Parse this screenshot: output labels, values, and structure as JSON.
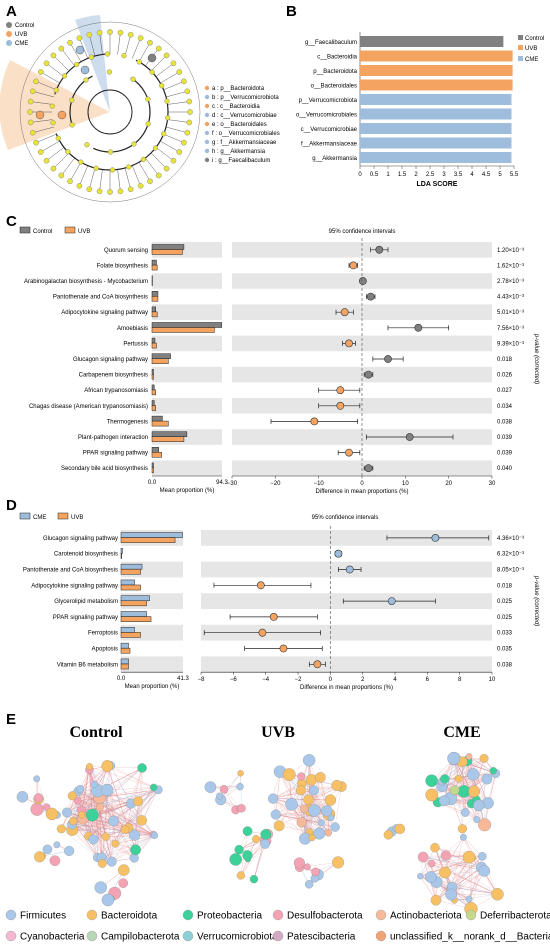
{
  "panels": {
    "a": "A",
    "b": "B",
    "c": "C",
    "d": "D",
    "e": "E"
  },
  "colors": {
    "control": "#808080",
    "uvb": "#F4A460",
    "cme": "#9EBCDB",
    "uvb_shade": "#F9D3B0",
    "yellow_node": "#E8E337",
    "grey_band": "#e6e6e6"
  },
  "chart_data": [
    {
      "id": "A",
      "type": "cladogram",
      "legend_groups": [
        "Control",
        "UVB",
        "CME"
      ],
      "clade_labels": [
        {
          "key": "a",
          "text": "a : p__Bacteroidota",
          "group": "UVB"
        },
        {
          "key": "b",
          "text": "b : p__Verrucomicrobiota",
          "group": "CME"
        },
        {
          "key": "c",
          "text": "c : c__Bacteroidia",
          "group": "UVB"
        },
        {
          "key": "d",
          "text": "d : c__Verrucomicrobiae",
          "group": "CME"
        },
        {
          "key": "e",
          "text": "e : o__Bacteroidales",
          "group": "UVB"
        },
        {
          "key": "f",
          "text": "f : o__Verrucomicrobiales",
          "group": "CME"
        },
        {
          "key": "g",
          "text": "g : f__Akkermansiaceae",
          "group": "CME"
        },
        {
          "key": "h",
          "text": "h : g__Akkermansia",
          "group": "CME"
        },
        {
          "key": "i",
          "text": "i : g__Faecalibaculum",
          "group": "Control"
        }
      ]
    },
    {
      "id": "B",
      "type": "bar",
      "orientation": "horizontal",
      "categories": [
        "g__Faecalibaculum",
        "c__Bacteroidia",
        "p__Bacteroidota",
        "o__Bacteroidales",
        "p__Verrucomicrobiota",
        "o__Verrucomicrobiales",
        "c__Verrucomicrobiae",
        "f__Akkermansiaceae",
        "g__Akkermansia"
      ],
      "groups": [
        "Control",
        "UVB",
        "UVB",
        "UVB",
        "CME",
        "CME",
        "CME",
        "CME",
        "CME"
      ],
      "values": [
        5.12,
        5.45,
        5.45,
        5.45,
        5.41,
        5.41,
        5.41,
        5.41,
        5.41
      ],
      "xlabel": "LDA SCORE",
      "xlim": [
        0,
        5.5
      ],
      "xticks": [
        "0",
        "0.5",
        "1",
        "1.5",
        "2",
        "2.5",
        "3",
        "3.5",
        "4",
        "4.5",
        "5",
        "5.5"
      ],
      "legend": [
        "Control",
        "UVB",
        "CME"
      ],
      "legend_position": "right"
    },
    {
      "id": "C",
      "type": "bar+errorbar",
      "legend": [
        "Control",
        "UVB"
      ],
      "right_title": "95% confidence intervals",
      "pathways": [
        "Quorum sensing",
        "Folate biosynthesis",
        "Arabinogalactan biosynthesis - Mycobacterium",
        "Pantothenate and CoA biosynthesis",
        "Adipocytokine signaling pathway",
        "Amoebiasis",
        "Pertussis",
        "Glucagon signaling pathway",
        "Carbapenem biosynthesis",
        "African trypanosomiasis",
        "Chagas disease (American trypanosomiasis)",
        "Thermogenesis",
        "Plant-pathogen interaction",
        "PPAR signaling pathway",
        "Secondary bile acid biosynthesis"
      ],
      "series": [
        {
          "name": "Control",
          "values": [
            43,
            6,
            0.5,
            8,
            5,
            94,
            4,
            25,
            2,
            3,
            3,
            14,
            47,
            9,
            2
          ]
        },
        {
          "name": "UVB",
          "values": [
            41,
            7,
            0.5,
            8,
            7,
            84,
            6,
            22,
            2,
            5,
            5,
            22,
            43,
            13,
            2
          ]
        }
      ],
      "bar_xlim": [
        0,
        94.3
      ],
      "bar_xticks": [
        "0.0",
        "94.3"
      ],
      "bar_xlabel": "Mean proportion (%)",
      "diff": [
        4,
        -2,
        0.2,
        2,
        -4,
        13,
        -3,
        6,
        1.5,
        -5,
        -5,
        -11,
        11,
        -3,
        1.5
      ],
      "ci_low": [
        2,
        -3,
        0,
        1,
        -6,
        6,
        -4.5,
        2.5,
        0.5,
        -10,
        -10,
        -21,
        1,
        -5.5,
        0.5
      ],
      "ci_high": [
        6,
        -1,
        0.5,
        3,
        -2,
        20,
        -1.5,
        9.5,
        2.5,
        -0.5,
        -0.5,
        -1,
        21,
        -0.5,
        2.5
      ],
      "point_group": [
        "Control",
        "UVB",
        "Control",
        "Control",
        "UVB",
        "Control",
        "UVB",
        "Control",
        "Control",
        "UVB",
        "UVB",
        "UVB",
        "Control",
        "UVB",
        "Control"
      ],
      "diff_xlim": [
        -30,
        30
      ],
      "diff_xticks": [
        "−30",
        "−20",
        "−10",
        "0",
        "10",
        "20",
        "30"
      ],
      "diff_xlabel": "Difference in mean proportions (%)",
      "pvalues": [
        "1.20×10⁻³",
        "1.62×10⁻³",
        "2.78×10⁻³",
        "4.43×10⁻³",
        "5.01×10⁻³",
        "7.56×10⁻³",
        "9.39×10⁻³",
        "0.018",
        "0.026",
        "0.027",
        "0.034",
        "0.038",
        "0.039",
        "0.039",
        "0.040"
      ],
      "pvalue_label": "p-value (corrected)"
    },
    {
      "id": "D",
      "type": "bar+errorbar",
      "legend": [
        "CME",
        "UVB"
      ],
      "right_title": "95% confidence intervals",
      "pathways": [
        "Glucagon signaling pathway",
        "Carotenoid biosynthesis",
        "Pantothenate and CoA biosynthesis",
        "Adipocytokine signaling pathway",
        "Glycerolipid metabolism",
        "PPAR signaling pathway",
        "Ferroptosis",
        "Apoptosis",
        "Vitamin B6 metabolism"
      ],
      "series": [
        {
          "name": "CME",
          "values": [
            41,
            1,
            14,
            9,
            19,
            17,
            9,
            5,
            5
          ]
        },
        {
          "name": "UVB",
          "values": [
            36,
            0.5,
            13,
            13,
            17,
            20,
            13,
            6,
            5
          ]
        }
      ],
      "bar_xlim": [
        0,
        41.3
      ],
      "bar_xticks": [
        "0.0",
        "41.3"
      ],
      "bar_xlabel": "Mean proportion (%)",
      "diff": [
        6.5,
        0.5,
        1.2,
        -4.3,
        3.8,
        -3.5,
        -4.2,
        -2.9,
        -0.8
      ],
      "ci_low": [
        3.5,
        0.3,
        0.5,
        -7.2,
        0.8,
        -6.2,
        -7.8,
        -5.3,
        -1.3
      ],
      "ci_high": [
        9.8,
        0.7,
        1.9,
        -1.2,
        6.5,
        -0.8,
        -0.6,
        -0.5,
        -0.3
      ],
      "point_group": [
        "CME",
        "CME",
        "CME",
        "UVB",
        "CME",
        "UVB",
        "UVB",
        "UVB",
        "UVB"
      ],
      "diff_xlim": [
        -8,
        10
      ],
      "diff_xticks": [
        "−8",
        "−6",
        "−4",
        "−2",
        "0",
        "2",
        "4",
        "6",
        "8",
        "10"
      ],
      "diff_xlabel": "Difference in mean proportions (%)",
      "pvalues": [
        "4.36×10⁻³",
        "6.32×10⁻³",
        "8.05×10⁻³",
        "0.018",
        "0.025",
        "0.025",
        "0.033",
        "0.035",
        "0.038"
      ],
      "pvalue_label": "p-value (corrected)"
    },
    {
      "id": "E",
      "type": "network",
      "titles": [
        "Control",
        "UVB",
        "CME"
      ],
      "legend": [
        {
          "name": "Firmicutes",
          "color": "#A9C7E8"
        },
        {
          "name": "Bacteroidota",
          "color": "#F7C065"
        },
        {
          "name": "Proteobacteria",
          "color": "#3DD19A"
        },
        {
          "name": "Desulfobacterota",
          "color": "#F4A3B4"
        },
        {
          "name": "Actinobacteriota",
          "color": "#F7B999"
        },
        {
          "name": "Deferribacterota",
          "color": "#C6D88A"
        },
        {
          "name": "Cyanobacteria",
          "color": "#F2B8D0"
        },
        {
          "name": "Campilobacterota",
          "color": "#B7D6B4"
        },
        {
          "name": "Verrucomicrobiota",
          "color": "#8DCFD6"
        },
        {
          "name": "Patescibacteria",
          "color": "#D6A9C2"
        },
        {
          "name": "unclassified_k__norank_d__Bacteria",
          "color": "#F0A277"
        }
      ]
    }
  ]
}
